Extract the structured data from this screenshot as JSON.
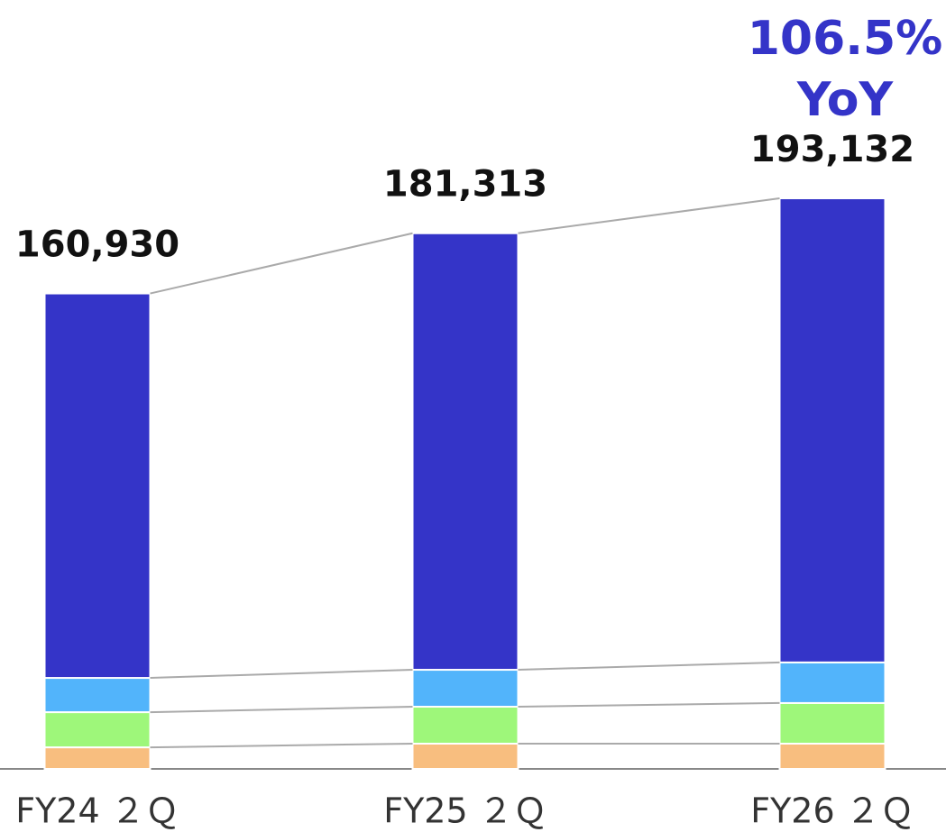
{
  "chart_data": {
    "type": "stacked_bar",
    "categories": [
      "FY24 ２Ｑ",
      "FY25 ２Ｑ",
      "FY26 ２Ｑ"
    ],
    "series": [
      {
        "color": "#f8be7f",
        "values": [
          7300,
          8550,
          8550
        ]
      },
      {
        "color": "#9ef77a",
        "values": [
          11900,
          12500,
          13750
        ]
      },
      {
        "color": "#52b4fb",
        "values": [
          11600,
          12500,
          13750
        ]
      },
      {
        "color": "#3434c8",
        "values": [
          130130,
          147763,
          157082
        ]
      }
    ],
    "totals": [
      160930,
      181313,
      193132
    ],
    "total_labels": [
      "160,930",
      "181,313",
      "193,132"
    ],
    "annotation": [
      "106.5%",
      "YoY"
    ],
    "annotation_color": "#3434c8"
  }
}
